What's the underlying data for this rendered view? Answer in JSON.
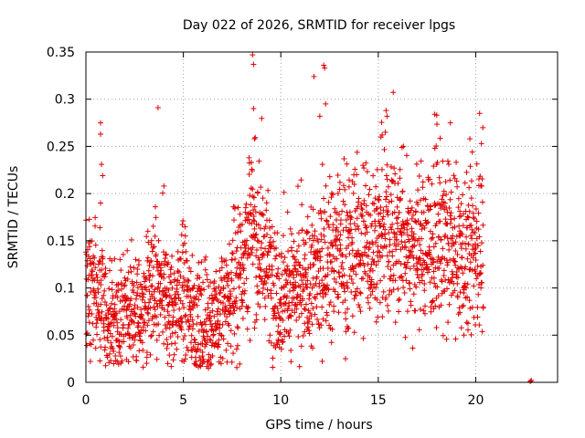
{
  "chart_data": {
    "type": "scatter",
    "title": "Day 022 of 2026, SRMTID for receiver lpgs",
    "xlabel": "GPS time / hours",
    "ylabel": "SRMTID / TECUs",
    "xlim": [
      0,
      24.2
    ],
    "ylim": [
      0,
      0.35
    ],
    "xticks": [
      0,
      5,
      10,
      15,
      20
    ],
    "xtick_labels": [
      "0",
      "5",
      "10",
      "15",
      "20"
    ],
    "yticks": [
      0,
      0.05,
      0.1,
      0.15,
      0.2,
      0.25,
      0.3,
      0.35
    ],
    "ytick_labels": [
      "0",
      "0.05",
      "0.1",
      "0.15",
      "0.2",
      "0.25",
      "0.3",
      "0.35"
    ],
    "grid": true,
    "marker": "plus",
    "series": [
      {
        "name": "SRMTID",
        "color": "#e00000",
        "trend": {
          "x": [
            0,
            0.5,
            1,
            1.5,
            2,
            2.5,
            3,
            3.5,
            4,
            4.5,
            5,
            5.5,
            6,
            6.5,
            7,
            7.5,
            8,
            8.5,
            9,
            9.5,
            10,
            10.5,
            11,
            11.5,
            12,
            12.5,
            13,
            13.5,
            14,
            14.5,
            15,
            15.5,
            16,
            16.5,
            17,
            17.5,
            18,
            18.5,
            19,
            19.5,
            20,
            20.4
          ],
          "y": [
            0.1,
            0.095,
            0.07,
            0.065,
            0.075,
            0.07,
            0.08,
            0.1,
            0.085,
            0.075,
            0.1,
            0.07,
            0.055,
            0.06,
            0.075,
            0.095,
            0.13,
            0.16,
            0.14,
            0.11,
            0.1,
            0.095,
            0.1,
            0.105,
            0.12,
            0.13,
            0.14,
            0.135,
            0.145,
            0.15,
            0.15,
            0.155,
            0.155,
            0.15,
            0.14,
            0.15,
            0.15,
            0.14,
            0.135,
            0.13,
            0.14,
            0.15
          ]
        },
        "outliers": [
          {
            "x": 0.75,
            "y": 0.275
          },
          {
            "x": 0.75,
            "y": 0.263
          },
          {
            "x": 0.8,
            "y": 0.231
          },
          {
            "x": 0.75,
            "y": 0.19
          },
          {
            "x": 3.7,
            "y": 0.291
          },
          {
            "x": 4.0,
            "y": 0.208
          },
          {
            "x": 4.2,
            "y": 0.02
          },
          {
            "x": 8.55,
            "y": 0.347
          },
          {
            "x": 8.6,
            "y": 0.337
          },
          {
            "x": 8.6,
            "y": 0.29
          },
          {
            "x": 8.65,
            "y": 0.258
          },
          {
            "x": 11.7,
            "y": 0.324
          },
          {
            "x": 12.0,
            "y": 0.282
          },
          {
            "x": 12.2,
            "y": 0.336
          },
          {
            "x": 12.25,
            "y": 0.333
          },
          {
            "x": 12.3,
            "y": 0.295
          },
          {
            "x": 15.4,
            "y": 0.288
          },
          {
            "x": 15.45,
            "y": 0.282
          },
          {
            "x": 17.9,
            "y": 0.284
          },
          {
            "x": 18.0,
            "y": 0.283
          },
          {
            "x": 18.7,
            "y": 0.275
          },
          {
            "x": 20.2,
            "y": 0.285
          },
          {
            "x": 19.7,
            "y": 0.258
          },
          {
            "x": 22.8,
            "y": 0.001
          },
          {
            "x": 22.85,
            "y": 0.002
          }
        ]
      }
    ]
  }
}
